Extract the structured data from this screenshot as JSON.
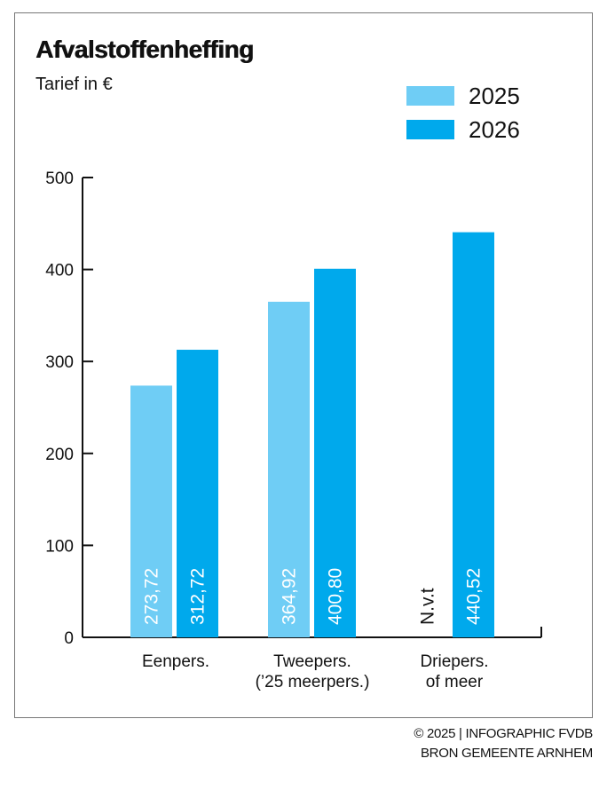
{
  "chart_data": {
    "type": "bar",
    "title": "Afvalstoffenheffing",
    "subtitle": "Tarief in €",
    "categories": [
      [
        "Eenpers."
      ],
      [
        "Tweepers.",
        "(’25 meerpers.)"
      ],
      [
        "Driepers.",
        "of meer"
      ]
    ],
    "series": [
      {
        "name": "2025",
        "color": "#6fcdf5",
        "values": [
          273.72,
          364.92,
          null
        ],
        "labels": [
          "273,72",
          "364,92",
          "N.v.t"
        ]
      },
      {
        "name": "2026",
        "color": "#00a9ec",
        "values": [
          312.72,
          400.8,
          440.52
        ],
        "labels": [
          "312,72",
          "400,80",
          "440,52"
        ]
      }
    ],
    "ylim": [
      0,
      500
    ],
    "yticks": [
      "0",
      "100",
      "200",
      "300",
      "400",
      "500"
    ],
    "grid": false,
    "legend": "top-right"
  },
  "footer": {
    "credit_line1": "© 2025 | INFOGRAPHIC FVDB",
    "credit_line2": "BRON GEMEENTE ARNHEM"
  }
}
